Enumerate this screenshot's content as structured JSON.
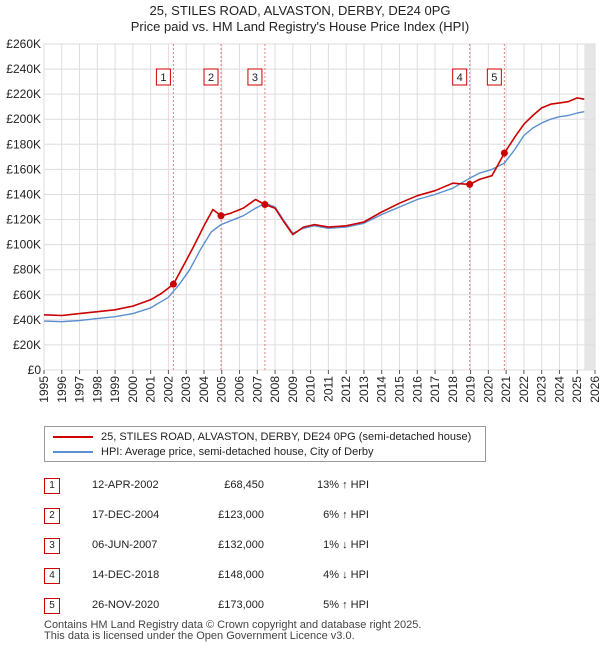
{
  "chart_data": {
    "type": "line",
    "title": "25, STILES ROAD, ALVASTON, DERBY, DE24 0PG",
    "subtitle": "Price paid vs. HM Land Registry's House Price Index (HPI)",
    "ylim": [
      0,
      260000
    ],
    "xlim": [
      1995,
      2026
    ],
    "y_ticks": [
      "£0",
      "£20K",
      "£40K",
      "£60K",
      "£80K",
      "£100K",
      "£120K",
      "£140K",
      "£160K",
      "£180K",
      "£200K",
      "£220K",
      "£240K",
      "£260K"
    ],
    "x_ticks": [
      "1995",
      "1996",
      "1997",
      "1998",
      "1999",
      "2000",
      "2001",
      "2002",
      "2003",
      "2004",
      "2005",
      "2006",
      "2007",
      "2008",
      "2009",
      "2010",
      "2011",
      "2012",
      "2013",
      "2014",
      "2015",
      "2016",
      "2017",
      "2018",
      "2019",
      "2020",
      "2021",
      "2022",
      "2023",
      "2024",
      "2025",
      "2026"
    ],
    "grid": true,
    "series": [
      {
        "name": "25, STILES ROAD, ALVASTON, DERBY, DE24 0PG (semi-detached house)",
        "color": "#cc0000",
        "x": [
          1995.0,
          1996.0,
          1997.0,
          1998.0,
          1999.0,
          2000.0,
          2001.0,
          2001.6,
          2002.28,
          2002.8,
          2003.4,
          2004.0,
          2004.5,
          2004.96,
          2005.5,
          2006.2,
          2006.9,
          2007.43,
          2008.0,
          2008.5,
          2009.0,
          2009.6,
          2010.2,
          2011.0,
          2012.0,
          2013.0,
          2014.0,
          2015.0,
          2016.0,
          2017.0,
          2018.0,
          2018.95,
          2019.5,
          2020.2,
          2020.9,
          2021.5,
          2022.0,
          2022.5,
          2023.0,
          2023.5,
          2024.0,
          2024.5,
          2025.0,
          2025.4
        ],
        "y": [
          44000,
          43500,
          45000,
          46500,
          48000,
          51000,
          56000,
          61000,
          68450,
          82000,
          98000,
          115000,
          128000,
          123000,
          125000,
          129000,
          136000,
          132000,
          129000,
          118000,
          108000,
          114000,
          116000,
          114000,
          115000,
          118000,
          126000,
          133000,
          139000,
          143000,
          149000,
          148000,
          152000,
          155000,
          173000,
          186000,
          196000,
          203000,
          209000,
          212000,
          213000,
          214000,
          217000,
          216000
        ]
      },
      {
        "name": "HPI: Average price, semi-detached house, City of Derby",
        "color": "#5b8fd0",
        "x": [
          1995.0,
          1996.0,
          1997.0,
          1998.0,
          1999.0,
          2000.0,
          2001.0,
          2002.0,
          2002.6,
          2003.2,
          2003.8,
          2004.4,
          2004.96,
          2005.5,
          2006.2,
          2006.9,
          2007.43,
          2008.0,
          2008.5,
          2009.0,
          2009.6,
          2010.2,
          2011.0,
          2012.0,
          2013.0,
          2014.0,
          2015.0,
          2016.0,
          2017.0,
          2018.0,
          2018.95,
          2019.5,
          2020.2,
          2020.9,
          2021.5,
          2022.0,
          2022.5,
          2023.0,
          2023.5,
          2024.0,
          2024.5,
          2025.0,
          2025.4
        ],
        "y": [
          39000,
          38500,
          39500,
          41000,
          42500,
          45000,
          49500,
          58000,
          68000,
          80000,
          96000,
          110000,
          116000,
          119000,
          123000,
          129000,
          133000,
          130000,
          119000,
          109000,
          113000,
          115000,
          113000,
          114000,
          117000,
          124000,
          130000,
          136000,
          140000,
          145000,
          153000,
          157000,
          160000,
          165000,
          176000,
          187000,
          193000,
          197000,
          200000,
          202000,
          203000,
          205000,
          206000
        ]
      }
    ],
    "sale_markers": [
      {
        "label": "1",
        "x": 2002.28,
        "y": 68450
      },
      {
        "label": "2",
        "x": 2004.96,
        "y": 123000
      },
      {
        "label": "3",
        "x": 2007.43,
        "y": 132000
      },
      {
        "label": "4",
        "x": 2018.95,
        "y": 148000
      },
      {
        "label": "5",
        "x": 2020.9,
        "y": 173000
      }
    ],
    "forecast_start": 2025.4
  },
  "legend": {
    "property_label": "25, STILES ROAD, ALVASTON, DERBY, DE24 0PG (semi-detached house)",
    "hpi_label": "HPI: Average price, semi-detached house, City of Derby"
  },
  "sales": [
    {
      "num": "1",
      "date": "12-APR-2002",
      "price": "£68,450",
      "hpi": "13% ↑ HPI"
    },
    {
      "num": "2",
      "date": "17-DEC-2004",
      "price": "£123,000",
      "hpi": "6% ↑ HPI"
    },
    {
      "num": "3",
      "date": "06-JUN-2007",
      "price": "£132,000",
      "hpi": "1% ↓ HPI"
    },
    {
      "num": "4",
      "date": "14-DEC-2018",
      "price": "£148,000",
      "hpi": "4% ↓ HPI"
    },
    {
      "num": "5",
      "date": "26-NOV-2020",
      "price": "£173,000",
      "hpi": "5% ↑ HPI"
    }
  ],
  "footer": {
    "line1": "Contains HM Land Registry data © Crown copyright and database right 2025.",
    "line2": "This data is licensed under the Open Government Licence v3.0."
  }
}
